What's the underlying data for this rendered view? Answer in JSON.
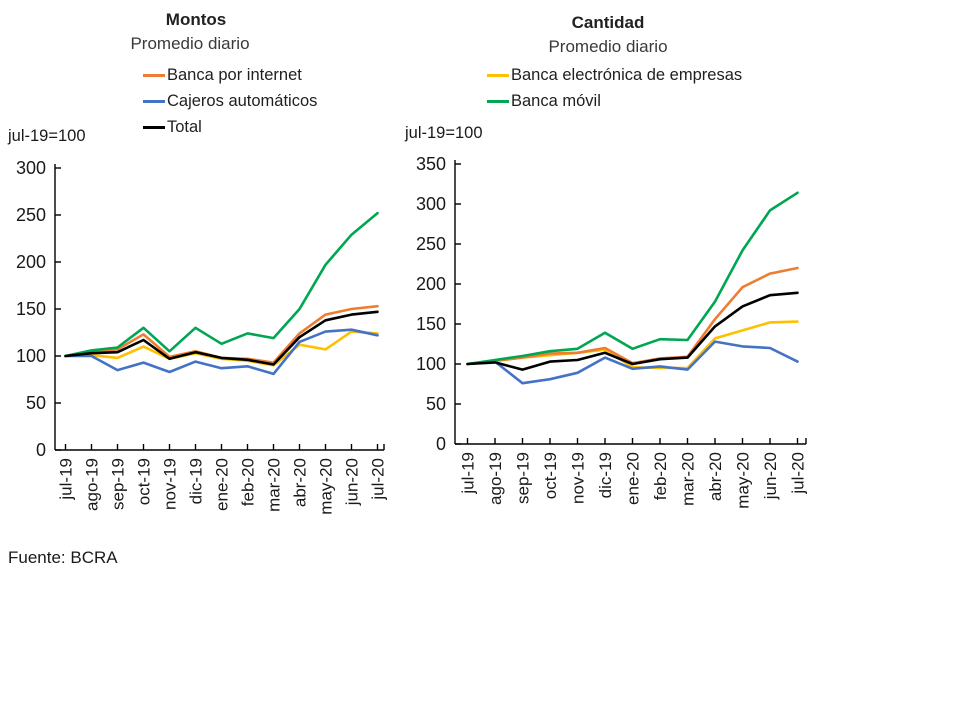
{
  "source_note": "Fuente: BCRA",
  "colors": {
    "orange": "#ED7D31",
    "blue": "#4472C4",
    "yellow": "#FFC000",
    "green": "#00A651",
    "black": "#000000",
    "axis": "#000000"
  },
  "chart_data": [
    {
      "type": "line",
      "title": "Montos",
      "subtitle": "Promedio diario",
      "axis_note": "jul-19=100",
      "categories": [
        "jul-19",
        "ago-19",
        "sep-19",
        "oct-19",
        "nov-19",
        "dic-19",
        "ene-20",
        "feb-20",
        "mar-20",
        "abr-20",
        "may-20",
        "jun-20",
        "jul-20"
      ],
      "ylim": [
        0,
        300
      ],
      "ytick_step": 50,
      "grid": false,
      "legend": [
        {
          "label": "Banca por internet",
          "color": "#ED7D31"
        },
        {
          "label": "Cajeros automáticos",
          "color": "#4472C4"
        },
        {
          "label": "Total",
          "color": "#000000"
        }
      ],
      "series": [
        {
          "name": "Banca electrónica de empresas",
          "color": "#FFC000",
          "values": [
            100,
            101,
            98,
            110,
            97,
            103,
            97,
            95,
            90,
            112,
            107,
            126,
            124
          ]
        },
        {
          "name": "Cajeros automáticos",
          "color": "#4472C4",
          "values": [
            100,
            100,
            85,
            93,
            83,
            94,
            87,
            89,
            81,
            115,
            126,
            128,
            122
          ]
        },
        {
          "name": "Banca por internet",
          "color": "#ED7D31",
          "values": [
            100,
            104,
            107,
            123,
            99,
            105,
            98,
            97,
            93,
            124,
            144,
            150,
            153
          ]
        },
        {
          "name": "Banca móvil",
          "color": "#00A651",
          "values": [
            100,
            106,
            109,
            130,
            105,
            130,
            113,
            124,
            119,
            150,
            197,
            229,
            252
          ]
        },
        {
          "name": "Total",
          "color": "#000000",
          "values": [
            100,
            103,
            104,
            117,
            97,
            104,
            98,
            96,
            91,
            120,
            138,
            144,
            147
          ]
        }
      ]
    },
    {
      "type": "line",
      "title": "Cantidad",
      "subtitle": "Promedio diario",
      "axis_note": "jul-19=100",
      "categories": [
        "jul-19",
        "ago-19",
        "sep-19",
        "oct-19",
        "nov-19",
        "dic-19",
        "ene-20",
        "feb-20",
        "mar-20",
        "abr-20",
        "may-20",
        "jun-20",
        "jul-20"
      ],
      "ylim": [
        0,
        350
      ],
      "ytick_step": 50,
      "grid": false,
      "legend": [
        {
          "label": "Banca electrónica de empresas",
          "color": "#FFC000"
        },
        {
          "label": "Banca móvil",
          "color": "#00A651"
        }
      ],
      "series": [
        {
          "name": "Banca electrónica de empresas",
          "color": "#FFC000",
          "values": [
            100,
            104,
            108,
            111,
            114,
            118,
            96,
            95,
            95,
            132,
            142,
            152,
            153
          ]
        },
        {
          "name": "Cajeros automáticos",
          "color": "#4472C4",
          "values": [
            100,
            103,
            76,
            81,
            89,
            108,
            94,
            97,
            93,
            128,
            122,
            120,
            103
          ]
        },
        {
          "name": "Banca por internet",
          "color": "#ED7D31",
          "values": [
            100,
            104,
            108,
            113,
            114,
            120,
            101,
            107,
            109,
            156,
            196,
            213,
            220
          ]
        },
        {
          "name": "Banca móvil",
          "color": "#00A651",
          "values": [
            100,
            105,
            110,
            116,
            119,
            139,
            119,
            131,
            130,
            178,
            242,
            292,
            314
          ]
        },
        {
          "name": "Total",
          "color": "#000000",
          "values": [
            100,
            102,
            93,
            103,
            105,
            114,
            100,
            106,
            108,
            147,
            172,
            186,
            189
          ]
        }
      ]
    }
  ]
}
